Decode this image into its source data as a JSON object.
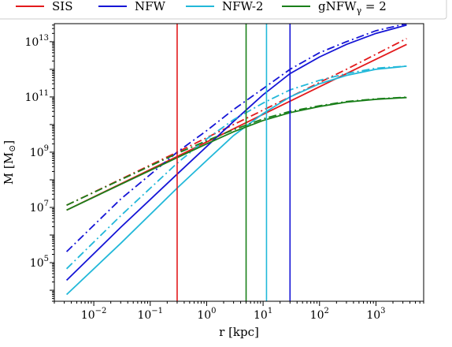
{
  "chart_data": {
    "type": "line",
    "xlabel": "r [kpc]",
    "ylabel": "M [M",
    "ylabel_sub": "⊙",
    "xscale": "log",
    "yscale": "log",
    "xlim": [
      0.002,
      7000
    ],
    "ylim": [
      4000,
      45000000000000.0
    ],
    "x_ticks": [
      {
        "value": 0.01,
        "base": "10",
        "exp": "−2"
      },
      {
        "value": 0.1,
        "base": "10",
        "exp": "−1"
      },
      {
        "value": 1,
        "base": "10",
        "exp": "0"
      },
      {
        "value": 10,
        "base": "10",
        "exp": "1"
      },
      {
        "value": 100,
        "base": "10",
        "exp": "2"
      },
      {
        "value": 1000,
        "base": "10",
        "exp": "3"
      }
    ],
    "y_ticks": [
      {
        "value": 100000,
        "base": "10",
        "exp": "5"
      },
      {
        "value": 10000000,
        "base": "10",
        "exp": "7"
      },
      {
        "value": 1000000000,
        "base": "10",
        "exp": "9"
      },
      {
        "value": 100000000000,
        "base": "10",
        "exp": "11"
      },
      {
        "value": 10000000000000,
        "base": "10",
        "exp": "13"
      }
    ],
    "legend": [
      {
        "label": "SIS",
        "color": "#e31a1c"
      },
      {
        "label": "NFW",
        "color": "#1515d6"
      },
      {
        "label": "NFW-2",
        "color": "#22b8d9"
      },
      {
        "label": "gNFW",
        "sub": "γ",
        "suffix": " = 2",
        "color": "#1a7f1a"
      }
    ],
    "legend_placement": "top, above plot",
    "grid": false,
    "series": [
      {
        "name": "SIS",
        "color": "#e31a1c",
        "style": "solid",
        "x": [
          0.0033,
          0.3,
          3,
          30,
          300,
          3500
        ],
        "y": [
          8000000.0,
          700000000.0,
          7000000000.0,
          70000000000.0,
          700000000000.0,
          8000000000000.0
        ]
      },
      {
        "name": "SIS",
        "color": "#e31a1c",
        "style": "dashdot",
        "x": [
          0.0033,
          0.3,
          3,
          30,
          300,
          3500
        ],
        "y": [
          12000000.0,
          1000000000.0,
          10000000000.0,
          100000000000.0,
          1000000000000.0,
          13000000000000.0
        ]
      },
      {
        "name": "NFW",
        "color": "#1515d6",
        "style": "solid",
        "x": [
          0.0033,
          0.03,
          0.3,
          1,
          3,
          10,
          30,
          100,
          300,
          1000,
          3500
        ],
        "y": [
          23000.0,
          1900000.0,
          160000000.0,
          1600000000.0,
          13000000000.0,
          120000000000.0,
          700000000000.0,
          2800000000000.0,
          8000000000000.0,
          20000000000000.0,
          40000000000000.0
        ]
      },
      {
        "name": "NFW",
        "color": "#1515d6",
        "style": "dashdot",
        "x": [
          0.0033,
          0.03,
          0.3,
          1,
          3,
          10,
          30,
          100,
          300,
          1000,
          3500
        ],
        "y": [
          250000.0,
          20000000.0,
          1000000000.0,
          6000000000.0,
          35000000000.0,
          200000000000.0,
          1000000000000.0,
          4000000000000.0,
          10000000000000.0,
          25000000000000.0,
          45000000000000.0
        ]
      },
      {
        "name": "NFW-2",
        "color": "#22b8d9",
        "style": "solid",
        "x": [
          0.0033,
          0.03,
          0.3,
          1,
          3,
          10,
          30,
          100,
          300,
          1000,
          3500
        ],
        "y": [
          7000.0,
          500000.0,
          50000000.0,
          500000000.0,
          4000000000.0,
          25000000000.0,
          100000000000.0,
          300000000000.0,
          600000000000.0,
          1000000000000.0,
          1300000000000.0
        ]
      },
      {
        "name": "NFW-2",
        "color": "#22b8d9",
        "style": "dashdot",
        "x": [
          0.0033,
          0.03,
          0.3,
          1,
          3,
          10,
          30,
          100,
          300,
          1000,
          3500
        ],
        "y": [
          60000.0,
          5000000.0,
          400000000.0,
          3000000000.0,
          15000000000.0,
          60000000000.0,
          180000000000.0,
          400000000000.0,
          700000000000.0,
          1100000000000.0,
          1300000000000.0
        ]
      },
      {
        "name": "gNFW_γ = 2",
        "color": "#1a7f1a",
        "style": "solid",
        "x": [
          0.0033,
          0.03,
          0.3,
          1,
          3,
          10,
          30,
          100,
          300,
          1000,
          3500
        ],
        "y": [
          8000000.0,
          68000000.0,
          630000000.0,
          2000000000.0,
          5500000000.0,
          14000000000.0,
          27000000000.0,
          45000000000.0,
          65000000000.0,
          82000000000.0,
          95000000000.0
        ]
      },
      {
        "name": "gNFW_γ = 2",
        "color": "#1a7f1a",
        "style": "dashdot",
        "x": [
          0.0033,
          0.03,
          0.3,
          1,
          3,
          10,
          30,
          100,
          300,
          1000,
          3500
        ],
        "y": [
          12000000.0,
          100000000.0,
          900000000.0,
          2600000000.0,
          6500000000.0,
          16000000000.0,
          30000000000.0,
          48000000000.0,
          68000000000.0,
          85000000000.0,
          98000000000.0
        ]
      },
      {
        "name": "SIS",
        "color": "#e31a1c",
        "style": "vline",
        "x_value": 0.3
      },
      {
        "name": "gNFW_γ = 2",
        "color": "#1a7f1a",
        "style": "vline",
        "x_value": 5
      },
      {
        "name": "NFW-2",
        "color": "#22b8d9",
        "style": "vline",
        "x_value": 11.5
      },
      {
        "name": "NFW",
        "color": "#1515d6",
        "style": "vline",
        "x_value": 30
      }
    ]
  }
}
